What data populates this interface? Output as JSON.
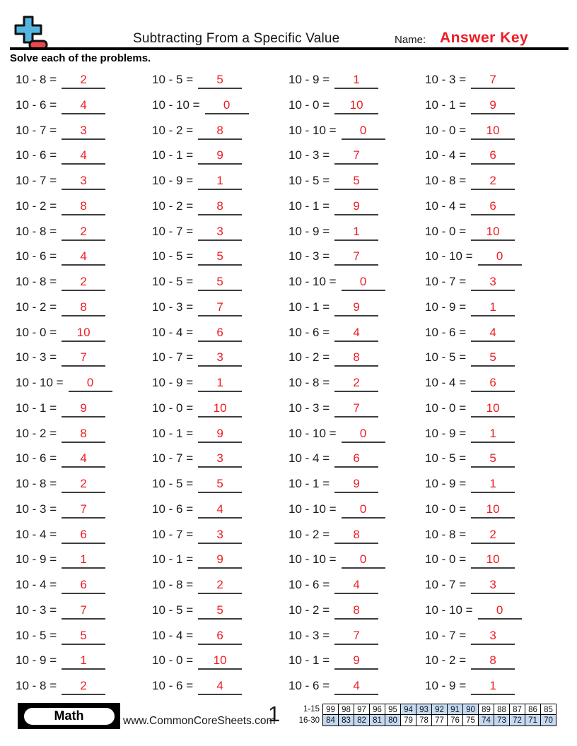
{
  "header": {
    "title": "Subtracting From a Specific Value",
    "name_label": "Name:",
    "answer_key_label": "Answer Key",
    "instructions": "Solve each of the problems."
  },
  "problems": [
    {
      "expr": "10 - 8 =",
      "answer": "2"
    },
    {
      "expr": "10 - 5 =",
      "answer": "5"
    },
    {
      "expr": "10 - 9 =",
      "answer": "1"
    },
    {
      "expr": "10 - 3 =",
      "answer": "7"
    },
    {
      "expr": "10 - 6 =",
      "answer": "4"
    },
    {
      "expr": "10 - 10 =",
      "answer": "0"
    },
    {
      "expr": "10 - 0 =",
      "answer": "10"
    },
    {
      "expr": "10 - 1 =",
      "answer": "9"
    },
    {
      "expr": "10 - 7 =",
      "answer": "3"
    },
    {
      "expr": "10 - 2 =",
      "answer": "8"
    },
    {
      "expr": "10 - 10 =",
      "answer": "0"
    },
    {
      "expr": "10 - 0 =",
      "answer": "10"
    },
    {
      "expr": "10 - 6 =",
      "answer": "4"
    },
    {
      "expr": "10 - 1 =",
      "answer": "9"
    },
    {
      "expr": "10 - 3 =",
      "answer": "7"
    },
    {
      "expr": "10 - 4 =",
      "answer": "6"
    },
    {
      "expr": "10 - 7 =",
      "answer": "3"
    },
    {
      "expr": "10 - 9 =",
      "answer": "1"
    },
    {
      "expr": "10 - 5 =",
      "answer": "5"
    },
    {
      "expr": "10 - 8 =",
      "answer": "2"
    },
    {
      "expr": "10 - 2 =",
      "answer": "8"
    },
    {
      "expr": "10 - 2 =",
      "answer": "8"
    },
    {
      "expr": "10 - 1 =",
      "answer": "9"
    },
    {
      "expr": "10 - 4 =",
      "answer": "6"
    },
    {
      "expr": "10 - 8 =",
      "answer": "2"
    },
    {
      "expr": "10 - 7 =",
      "answer": "3"
    },
    {
      "expr": "10 - 9 =",
      "answer": "1"
    },
    {
      "expr": "10 - 0 =",
      "answer": "10"
    },
    {
      "expr": "10 - 6 =",
      "answer": "4"
    },
    {
      "expr": "10 - 5 =",
      "answer": "5"
    },
    {
      "expr": "10 - 3 =",
      "answer": "7"
    },
    {
      "expr": "10 - 10 =",
      "answer": "0"
    },
    {
      "expr": "10 - 8 =",
      "answer": "2"
    },
    {
      "expr": "10 - 5 =",
      "answer": "5"
    },
    {
      "expr": "10 - 10 =",
      "answer": "0"
    },
    {
      "expr": "10 - 7 =",
      "answer": "3"
    },
    {
      "expr": "10 - 2 =",
      "answer": "8"
    },
    {
      "expr": "10 - 3 =",
      "answer": "7"
    },
    {
      "expr": "10 - 1 =",
      "answer": "9"
    },
    {
      "expr": "10 - 9 =",
      "answer": "1"
    },
    {
      "expr": "10 - 0 =",
      "answer": "10"
    },
    {
      "expr": "10 - 4 =",
      "answer": "6"
    },
    {
      "expr": "10 - 6 =",
      "answer": "4"
    },
    {
      "expr": "10 - 6 =",
      "answer": "4"
    },
    {
      "expr": "10 - 3 =",
      "answer": "7"
    },
    {
      "expr": "10 - 7 =",
      "answer": "3"
    },
    {
      "expr": "10 - 2 =",
      "answer": "8"
    },
    {
      "expr": "10 - 5 =",
      "answer": "5"
    },
    {
      "expr": "10 - 10 =",
      "answer": "0"
    },
    {
      "expr": "10 - 9 =",
      "answer": "1"
    },
    {
      "expr": "10 - 8 =",
      "answer": "2"
    },
    {
      "expr": "10 - 4 =",
      "answer": "6"
    },
    {
      "expr": "10 - 1 =",
      "answer": "9"
    },
    {
      "expr": "10 - 0 =",
      "answer": "10"
    },
    {
      "expr": "10 - 3 =",
      "answer": "7"
    },
    {
      "expr": "10 - 0 =",
      "answer": "10"
    },
    {
      "expr": "10 - 2 =",
      "answer": "8"
    },
    {
      "expr": "10 - 1 =",
      "answer": "9"
    },
    {
      "expr": "10 - 10 =",
      "answer": "0"
    },
    {
      "expr": "10 - 9 =",
      "answer": "1"
    },
    {
      "expr": "10 - 6 =",
      "answer": "4"
    },
    {
      "expr": "10 - 7 =",
      "answer": "3"
    },
    {
      "expr": "10 - 4 =",
      "answer": "6"
    },
    {
      "expr": "10 - 5 =",
      "answer": "5"
    },
    {
      "expr": "10 - 8 =",
      "answer": "2"
    },
    {
      "expr": "10 - 5 =",
      "answer": "5"
    },
    {
      "expr": "10 - 1 =",
      "answer": "9"
    },
    {
      "expr": "10 - 9 =",
      "answer": "1"
    },
    {
      "expr": "10 - 3 =",
      "answer": "7"
    },
    {
      "expr": "10 - 6 =",
      "answer": "4"
    },
    {
      "expr": "10 - 10 =",
      "answer": "0"
    },
    {
      "expr": "10 - 0 =",
      "answer": "10"
    },
    {
      "expr": "10 - 4 =",
      "answer": "6"
    },
    {
      "expr": "10 - 7 =",
      "answer": "3"
    },
    {
      "expr": "10 - 2 =",
      "answer": "8"
    },
    {
      "expr": "10 - 8 =",
      "answer": "2"
    },
    {
      "expr": "10 - 9 =",
      "answer": "1"
    },
    {
      "expr": "10 - 1 =",
      "answer": "9"
    },
    {
      "expr": "10 - 10 =",
      "answer": "0"
    },
    {
      "expr": "10 - 0 =",
      "answer": "10"
    },
    {
      "expr": "10 - 4 =",
      "answer": "6"
    },
    {
      "expr": "10 - 8 =",
      "answer": "2"
    },
    {
      "expr": "10 - 6 =",
      "answer": "4"
    },
    {
      "expr": "10 - 7 =",
      "answer": "3"
    },
    {
      "expr": "10 - 3 =",
      "answer": "7"
    },
    {
      "expr": "10 - 5 =",
      "answer": "5"
    },
    {
      "expr": "10 - 2 =",
      "answer": "8"
    },
    {
      "expr": "10 - 10 =",
      "answer": "0"
    },
    {
      "expr": "10 - 5 =",
      "answer": "5"
    },
    {
      "expr": "10 - 4 =",
      "answer": "6"
    },
    {
      "expr": "10 - 3 =",
      "answer": "7"
    },
    {
      "expr": "10 - 7 =",
      "answer": "3"
    },
    {
      "expr": "10 - 9 =",
      "answer": "1"
    },
    {
      "expr": "10 - 0 =",
      "answer": "10"
    },
    {
      "expr": "10 - 1 =",
      "answer": "9"
    },
    {
      "expr": "10 - 2 =",
      "answer": "8"
    },
    {
      "expr": "10 - 8 =",
      "answer": "2"
    },
    {
      "expr": "10 - 6 =",
      "answer": "4"
    },
    {
      "expr": "10 - 6 =",
      "answer": "4"
    },
    {
      "expr": "10 - 9 =",
      "answer": "1"
    }
  ],
  "footer": {
    "subject": "Math",
    "website": "www.CommonCoreSheets.com",
    "page_number": "1",
    "score_table": [
      {
        "label": "1-15",
        "scores": [
          99,
          98,
          97,
          96,
          95,
          94,
          93,
          92,
          91,
          90,
          89,
          88,
          87,
          86,
          85
        ],
        "highlighted": [
          5,
          6,
          7,
          8,
          9
        ]
      },
      {
        "label": "16-30",
        "scores": [
          84,
          83,
          82,
          81,
          80,
          79,
          78,
          77,
          76,
          75,
          74,
          73,
          72,
          71,
          70
        ],
        "highlighted": [
          0,
          1,
          2,
          3,
          4,
          10,
          11,
          12,
          13,
          14
        ]
      }
    ]
  },
  "colors": {
    "answer_red": "#ee1c24",
    "logo_blue": "#54b6e0",
    "logo_red": "#e8484d",
    "score_highlight": "#c5d9f1"
  }
}
